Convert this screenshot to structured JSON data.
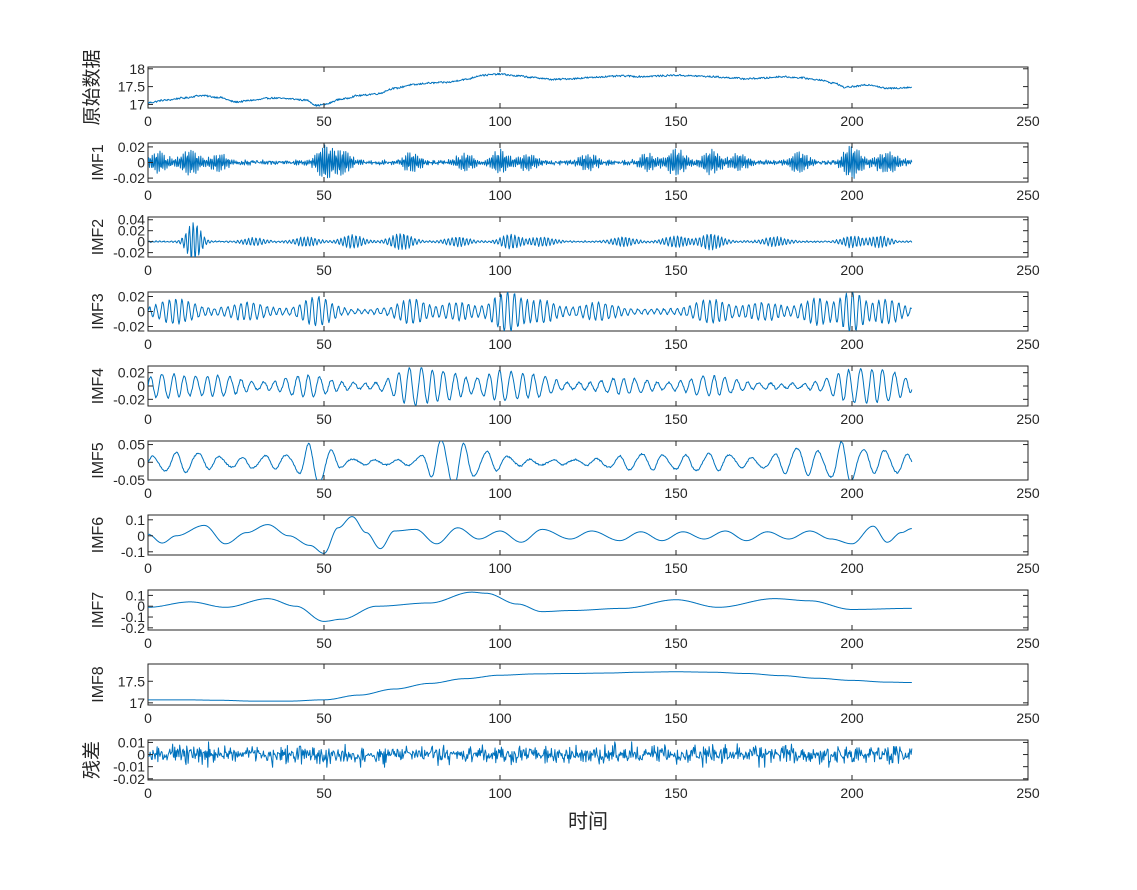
{
  "colors": {
    "series": "#0072BD",
    "axes": "#262626",
    "background": "#ffffff"
  },
  "xlabel": "时间",
  "chart_data": [
    {
      "type": "line",
      "ylabel": "原始数据",
      "xlim": [
        0,
        250
      ],
      "xticks": [
        "0",
        "50",
        "100",
        "150",
        "200",
        "250"
      ],
      "ylim": [
        16.9,
        18.05
      ],
      "yticks": [
        17,
        17.5,
        18
      ],
      "ytick_labels": [
        "17",
        "17.5",
        "18"
      ],
      "signal": {
        "kind": "anchored",
        "noise": 0.025,
        "x": [
          0,
          5,
          10,
          15,
          20,
          25,
          30,
          35,
          40,
          45,
          48,
          50,
          55,
          60,
          65,
          70,
          75,
          80,
          85,
          90,
          95,
          100,
          105,
          110,
          115,
          120,
          125,
          130,
          135,
          140,
          145,
          150,
          155,
          160,
          165,
          170,
          175,
          180,
          185,
          190,
          195,
          198,
          200,
          205,
          210,
          217
        ],
        "y": [
          17.05,
          17.12,
          17.18,
          17.25,
          17.2,
          17.07,
          17.12,
          17.18,
          17.16,
          17.12,
          16.97,
          17.0,
          17.15,
          17.25,
          17.3,
          17.45,
          17.55,
          17.6,
          17.62,
          17.7,
          17.82,
          17.85,
          17.8,
          17.75,
          17.7,
          17.72,
          17.75,
          17.78,
          17.8,
          17.78,
          17.8,
          17.82,
          17.8,
          17.78,
          17.75,
          17.72,
          17.74,
          17.78,
          17.75,
          17.7,
          17.6,
          17.48,
          17.5,
          17.55,
          17.45,
          17.48
        ]
      }
    },
    {
      "type": "line",
      "ylabel": "IMF1",
      "xlim": [
        0,
        250
      ],
      "xticks": [
        "0",
        "50",
        "100",
        "150",
        "200",
        "250"
      ],
      "ylim": [
        -0.025,
        0.025
      ],
      "yticks": [
        -0.02,
        0,
        0.02
      ],
      "ytick_labels": [
        "-0.02",
        "0",
        "0.02"
      ],
      "signal": {
        "kind": "bursts",
        "period": 0.55,
        "base": 0.0015,
        "noise": 0.002,
        "centers": [
          3,
          12,
          20,
          50,
          55,
          75,
          90,
          100,
          108,
          125,
          142,
          150,
          160,
          168,
          185,
          200,
          210
        ],
        "amps": [
          0.012,
          0.016,
          0.01,
          0.02,
          0.015,
          0.011,
          0.01,
          0.014,
          0.009,
          0.01,
          0.009,
          0.016,
          0.014,
          0.01,
          0.012,
          0.02,
          0.012
        ],
        "widths": [
          3,
          3,
          3,
          2.5,
          3,
          3,
          3,
          3,
          3,
          3,
          3,
          3,
          3,
          3,
          3,
          3,
          4
        ]
      }
    },
    {
      "type": "line",
      "ylabel": "IMF2",
      "xlim": [
        0,
        250
      ],
      "xticks": [
        "0",
        "50",
        "100",
        "150",
        "200",
        "250"
      ],
      "ylim": [
        -0.028,
        0.045
      ],
      "yticks": [
        -0.02,
        0,
        0.02,
        0.04
      ],
      "ytick_labels": [
        "-0.02",
        "0",
        "0.02",
        "0.04"
      ],
      "signal": {
        "kind": "bursts",
        "period": 1.05,
        "base": 0.001,
        "noise": 0.0008,
        "centers": [
          13,
          30,
          45,
          58,
          72,
          88,
          103,
          112,
          135,
          150,
          160,
          178,
          200,
          208
        ],
        "amps": [
          0.035,
          0.006,
          0.008,
          0.012,
          0.014,
          0.008,
          0.013,
          0.008,
          0.008,
          0.01,
          0.014,
          0.008,
          0.01,
          0.01
        ],
        "widths": [
          2.5,
          4,
          4,
          3.5,
          4,
          4,
          3.5,
          4,
          4,
          4,
          4,
          4,
          3.5,
          3.5
        ]
      }
    },
    {
      "type": "line",
      "ylabel": "IMF3",
      "xlim": [
        0,
        250
      ],
      "xticks": [
        "0",
        "50",
        "100",
        "150",
        "200",
        "250"
      ],
      "ylim": [
        -0.026,
        0.026
      ],
      "yticks": [
        -0.02,
        0,
        0.02
      ],
      "ytick_labels": [
        "-0.02",
        "0",
        "0.02"
      ],
      "signal": {
        "kind": "bursts",
        "period": 1.85,
        "base": 0.003,
        "noise": 0.0012,
        "centers": [
          8,
          28,
          48,
          75,
          88,
          102,
          112,
          128,
          160,
          175,
          190,
          200,
          210
        ],
        "amps": [
          0.014,
          0.009,
          0.017,
          0.014,
          0.009,
          0.024,
          0.012,
          0.009,
          0.013,
          0.009,
          0.015,
          0.024,
          0.013
        ],
        "widths": [
          6,
          6,
          5,
          5,
          5,
          5,
          5,
          6,
          6,
          6,
          5,
          4,
          5
        ]
      }
    },
    {
      "type": "line",
      "ylabel": "IMF4",
      "xlim": [
        0,
        250
      ],
      "xticks": [
        "0",
        "50",
        "100",
        "150",
        "200",
        "250"
      ],
      "ylim": [
        -0.03,
        0.03
      ],
      "yticks": [
        -0.02,
        0,
        0.02
      ],
      "ytick_labels": [
        "-0.02",
        "0",
        "0.02"
      ],
      "signal": {
        "kind": "bursts",
        "period": 3.2,
        "base": 0.004,
        "noise": 0.0015,
        "centers": [
          5,
          20,
          45,
          75,
          85,
          100,
          110,
          135,
          160,
          200,
          210
        ],
        "amps": [
          0.014,
          0.011,
          0.012,
          0.024,
          0.016,
          0.018,
          0.012,
          0.008,
          0.011,
          0.02,
          0.017
        ],
        "widths": [
          8,
          8,
          8,
          6,
          6,
          6,
          6,
          8,
          8,
          7,
          6
        ]
      }
    },
    {
      "type": "line",
      "ylabel": "IMF5",
      "xlim": [
        0,
        250
      ],
      "xticks": [
        "0",
        "50",
        "100",
        "150",
        "200",
        "250"
      ],
      "ylim": [
        -0.05,
        0.06
      ],
      "yticks": [
        -0.05,
        0,
        0.05
      ],
      "ytick_labels": [
        "-0.05",
        "0",
        "0.05"
      ],
      "signal": {
        "kind": "bursts",
        "period": 6.3,
        "base": 0.007,
        "noise": 0.002,
        "centers": [
          10,
          35,
          48,
          85,
          95,
          140,
          160,
          185,
          198,
          210
        ],
        "amps": [
          0.022,
          0.012,
          0.052,
          0.06,
          0.022,
          0.016,
          0.018,
          0.032,
          0.048,
          0.026
        ],
        "widths": [
          10,
          10,
          5,
          6,
          8,
          10,
          10,
          8,
          5,
          8
        ]
      }
    },
    {
      "type": "line",
      "ylabel": "IMF6",
      "xlim": [
        0,
        250
      ],
      "xticks": [
        "0",
        "50",
        "100",
        "150",
        "200",
        "250"
      ],
      "ylim": [
        -0.12,
        0.13
      ],
      "yticks": [
        -0.1,
        0,
        0.1
      ],
      "ytick_labels": [
        "-0.1",
        "0",
        "0.1"
      ],
      "signal": {
        "kind": "anchored",
        "noise": 0,
        "x": [
          0,
          4,
          8,
          16,
          22,
          28,
          34,
          40,
          46,
          50,
          54,
          58,
          62,
          66,
          70,
          76,
          82,
          88,
          94,
          100,
          106,
          112,
          120,
          126,
          134,
          140,
          146,
          152,
          158,
          164,
          170,
          176,
          182,
          188,
          194,
          200,
          206,
          210,
          214,
          217
        ],
        "y": [
          0.01,
          -0.045,
          0.0,
          0.065,
          -0.05,
          0.02,
          0.07,
          0.0,
          -0.06,
          -0.11,
          0.05,
          0.12,
          0.02,
          -0.08,
          0.03,
          0.04,
          -0.05,
          0.05,
          -0.02,
          0.03,
          -0.04,
          0.04,
          -0.02,
          0.03,
          -0.03,
          0.025,
          -0.03,
          0.025,
          -0.02,
          0.03,
          -0.03,
          0.025,
          -0.02,
          0.03,
          -0.02,
          -0.05,
          0.06,
          -0.04,
          0.02,
          0.045
        ]
      }
    },
    {
      "type": "line",
      "ylabel": "IMF7",
      "xlim": [
        0,
        250
      ],
      "xticks": [
        "0",
        "50",
        "100",
        "150",
        "200",
        "250"
      ],
      "ylim": [
        -0.22,
        0.15
      ],
      "yticks": [
        -0.2,
        -0.1,
        0,
        0.1
      ],
      "ytick_labels": [
        "-0.2",
        "-0.1",
        "0",
        "0.1"
      ],
      "signal": {
        "kind": "anchored",
        "noise": 0,
        "x": [
          0,
          12,
          22,
          34,
          42,
          50,
          55,
          65,
          80,
          92,
          96,
          105,
          112,
          120,
          135,
          150,
          162,
          178,
          188,
          200,
          217
        ],
        "y": [
          -0.01,
          0.04,
          -0.01,
          0.07,
          0.0,
          -0.14,
          -0.12,
          0.0,
          0.03,
          0.13,
          0.12,
          0.02,
          -0.05,
          -0.04,
          -0.02,
          0.06,
          -0.01,
          0.07,
          0.05,
          -0.03,
          -0.02
        ]
      }
    },
    {
      "type": "line",
      "ylabel": "IMF8",
      "xlim": [
        0,
        250
      ],
      "xticks": [
        "0",
        "50",
        "100",
        "150",
        "200",
        "250"
      ],
      "ylim": [
        16.95,
        17.9
      ],
      "yticks": [
        17,
        17.5
      ],
      "ytick_labels": [
        "17",
        "17.5"
      ],
      "signal": {
        "kind": "anchored",
        "noise": 0,
        "x": [
          0,
          10,
          20,
          30,
          40,
          50,
          60,
          70,
          80,
          90,
          100,
          110,
          120,
          130,
          140,
          150,
          160,
          170,
          180,
          190,
          200,
          210,
          217
        ],
        "y": [
          17.07,
          17.07,
          17.06,
          17.04,
          17.04,
          17.07,
          17.18,
          17.32,
          17.45,
          17.56,
          17.64,
          17.67,
          17.68,
          17.69,
          17.71,
          17.72,
          17.71,
          17.68,
          17.63,
          17.57,
          17.52,
          17.48,
          17.47
        ]
      }
    },
    {
      "type": "line",
      "ylabel": "残差",
      "xlim": [
        0,
        250
      ],
      "xticks": [
        "0",
        "50",
        "100",
        "150",
        "200",
        "250"
      ],
      "ylim": [
        -0.021,
        0.012
      ],
      "yticks": [
        -0.02,
        -0.01,
        0,
        0.01
      ],
      "ytick_labels": [
        "-0.02",
        "-0.01",
        "0",
        "0.01"
      ],
      "signal": {
        "kind": "noise",
        "amp": 0.0042,
        "spike": 0.0105
      }
    }
  ]
}
